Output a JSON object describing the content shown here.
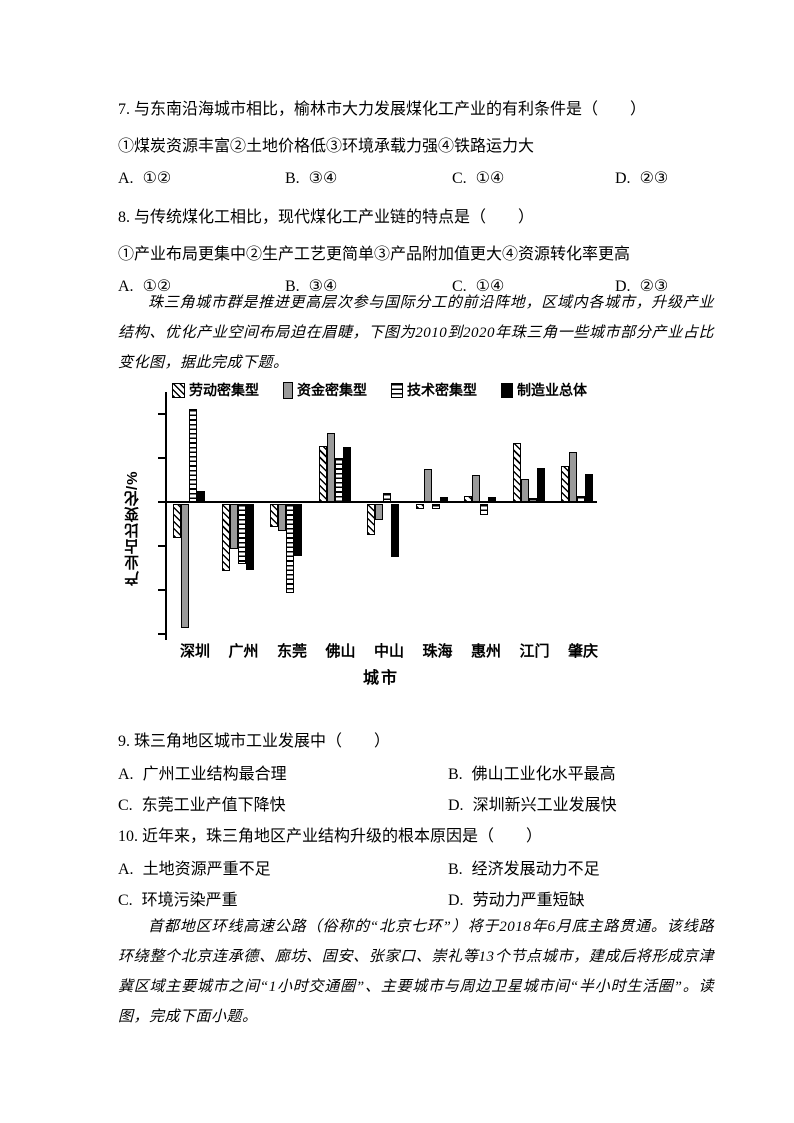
{
  "page": {
    "background": "#ffffff",
    "text_color": "#000000"
  },
  "questions": [
    {
      "number": "7.",
      "text": "与东南沿海城市相比，榆林市大力发展煤化工产业的有利条件是（　　）",
      "sub": "①煤炭资源丰富②土地价格低③环境承载力强④铁路运力大",
      "options": [
        {
          "label": "A.",
          "text": "①②"
        },
        {
          "label": "B.",
          "text": "③④"
        },
        {
          "label": "C.",
          "text": "①④"
        },
        {
          "label": "D.",
          "text": "②③"
        }
      ]
    },
    {
      "number": "8.",
      "text": "与传统煤化工相比，现代煤化工产业链的特点是（　　）",
      "sub": "①产业布局更集中②生产工艺更简单③产品附加值更大④资源转化率更高",
      "options": [
        {
          "label": "A.",
          "text": "①②"
        },
        {
          "label": "B.",
          "text": "③④"
        },
        {
          "label": "C.",
          "text": "①④"
        },
        {
          "label": "D.",
          "text": "②③"
        }
      ]
    },
    {
      "number": "9.",
      "text": "珠三角地区城市工业发展中（　　）",
      "options": [
        {
          "label": "A.",
          "text": "广州工业结构最合理"
        },
        {
          "label": "B.",
          "text": "佛山工业化水平最高"
        },
        {
          "label": "C.",
          "text": "东莞工业产值下降快"
        },
        {
          "label": "D.",
          "text": "深圳新兴工业发展快"
        }
      ]
    },
    {
      "number": "10.",
      "text": "近年来，珠三角地区产业结构升级的根本原因是（　　）",
      "options": [
        {
          "label": "A.",
          "text": "土地资源严重不足"
        },
        {
          "label": "B.",
          "text": "经济发展动力不足"
        },
        {
          "label": "C.",
          "text": "环境污染严重"
        },
        {
          "label": "D.",
          "text": "劳动力严重短缺"
        }
      ]
    }
  ],
  "paragraphs": [
    {
      "text": "珠三角城市群是推进更高层次参与国际分工的前沿阵地，区域内各城市，升级产业结构、优化产业空间布局迫在眉睫，下图为2010到2020年珠三角一些城市部分产业占比变化图，据此完成下题。"
    },
    {
      "text": "首都地区环线高速公路（俗称的“北京七环”）将于2018年6月底主路贯通。该线路环绕整个北京连承德、廊坊、固安、张家口、崇礼等13个节点城市，建成后将形成京津冀区域主要城市之间“1小时交通圈”、主要城市与周边卫星城市间“半小时生活圈”。读图，完成下面小题。"
    }
  ],
  "chart_data": {
    "type": "bar",
    "title": "",
    "categories": [
      "深圳",
      "广州",
      "东莞",
      "佛山",
      "中山",
      "珠海",
      "惠州",
      "江门",
      "肇庆"
    ],
    "series": [
      {
        "name": "劳动密集型",
        "pattern": "diagonal-hatch",
        "values": [
          -3.9,
          -7.7,
          -2.6,
          6.3,
          -3.5,
          -0.6,
          0.7,
          6.7,
          4.1
        ]
      },
      {
        "name": "资金密集型",
        "pattern": "solid-gray",
        "color": "#9a9a9a",
        "values": [
          -14.1,
          -5.1,
          -3.1,
          7.8,
          -1.8,
          3.7,
          3.0,
          2.6,
          5.7
        ]
      },
      {
        "name": "技术密集型",
        "pattern": "horizontal-stripes",
        "values": [
          10.6,
          -6.8,
          -10.2,
          5.0,
          1.0,
          -0.6,
          -1.3,
          0.4,
          0.7
        ]
      },
      {
        "name": "制造业总体",
        "pattern": "solid-black",
        "color": "#000000",
        "values": [
          1.2,
          -7.5,
          -5.9,
          6.2,
          -6.1,
          0.6,
          0.6,
          3.8,
          3.2
        ]
      }
    ],
    "xlabel": "城市",
    "ylabel": "产业占比变化/%",
    "ylim": [
      -15.5,
      12.5
    ],
    "y_tick_interval": 5,
    "y_tick_labels_shown": false,
    "grid": false,
    "legend_position": "top",
    "axis_color": "#000000",
    "note": "y axis has unlabeled ticks; values estimated in percent, 1 tick = 5"
  }
}
